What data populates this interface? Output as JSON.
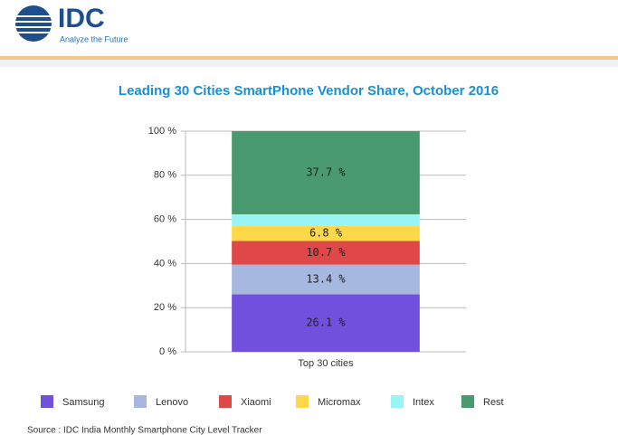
{
  "logo": {
    "name": "IDC",
    "tagline": "Analyze the Future"
  },
  "source": "Source : IDC India Monthly Smartphone City Level Tracker",
  "chart_data": {
    "type": "stacked_bar",
    "title": "Leading 30 Cities SmartPhone Vendor Share, October 2016",
    "categories": [
      "Top 30 cities"
    ],
    "series": [
      {
        "name": "Samsung",
        "color": "#7050dc",
        "values": [
          26.1
        ],
        "value_labels": [
          "26.1 %"
        ]
      },
      {
        "name": "Lenovo",
        "color": "#a7b8e0",
        "values": [
          13.4
        ],
        "value_labels": [
          "13.4 %"
        ]
      },
      {
        "name": "Xiaomi",
        "color": "#e04848",
        "values": [
          10.7
        ],
        "value_labels": [
          "10.7 %"
        ]
      },
      {
        "name": "Micromax",
        "color": "#ffd84a",
        "values": [
          6.8
        ],
        "value_labels": [
          "6.8 %"
        ]
      },
      {
        "name": "Intex",
        "color": "#99f5f5",
        "values": [
          5.3
        ]
      },
      {
        "name": "Rest",
        "color": "#4a9a70",
        "values": [
          37.7
        ],
        "value_labels": [
          "37.7 %"
        ]
      }
    ],
    "ylim": [
      0,
      100
    ],
    "yticks": [
      {
        "value": 0,
        "label": "0 %"
      },
      {
        "value": 20,
        "label": "20 %"
      },
      {
        "value": 40,
        "label": "40 %"
      },
      {
        "value": 60,
        "label": "60 %"
      },
      {
        "value": 80,
        "label": "80 %"
      },
      {
        "value": 100,
        "label": "100 %"
      }
    ],
    "grid": true,
    "legend": "bottom"
  }
}
